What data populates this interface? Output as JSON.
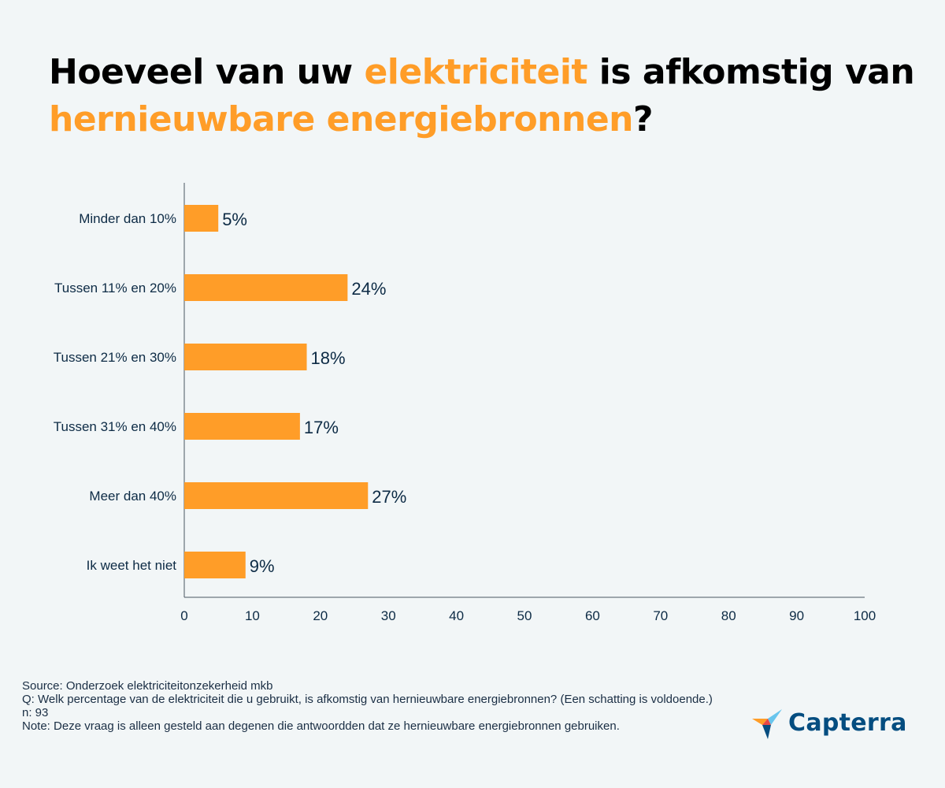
{
  "header": {
    "title_part1": "Hoeveel van uw ",
    "title_highlight1": "elektriciteit",
    "title_part2": " is afkomstig van ",
    "title_highlight2": "hernieuwbare energiebronnen",
    "title_part3": "?"
  },
  "colors": {
    "bar": "#ff9d28",
    "highlight": "#ff9d28",
    "text": "#0d2b45",
    "axis": "#4a5560"
  },
  "chart_data": {
    "type": "bar",
    "orientation": "horizontal",
    "title": "Hoeveel van uw elektriciteit is afkomstig van hernieuwbare energiebronnen?",
    "categories": [
      "Minder dan 10%",
      "Tussen 11% en 20%",
      "Tussen 21% en 30%",
      "Tussen 31% en 40%",
      "Meer dan 40%",
      "Ik weet het niet"
    ],
    "values": [
      5,
      24,
      18,
      17,
      27,
      9
    ],
    "value_labels": [
      "5%",
      "24%",
      "18%",
      "17%",
      "27%",
      "9%"
    ],
    "xlim": [
      0,
      100
    ],
    "xticks": [
      0,
      10,
      20,
      30,
      40,
      50,
      60,
      70,
      80,
      90,
      100
    ],
    "xlabel": "",
    "ylabel": "",
    "grid": false
  },
  "footer": {
    "source": "Source: Onderzoek elektriciteitonzekerheid mkb",
    "question": "Q: Welk percentage van de elektriciteit die u gebruikt, is afkomstig van hernieuwbare energiebronnen? (Een schatting is voldoende.)",
    "n": "n: 93",
    "note": "Note: Deze vraag is alleen gesteld aan degenen die antwoordden dat ze hernieuwbare energiebronnen gebruiken."
  },
  "logo": {
    "text": "Capterra",
    "icon": "capterra-arrow-icon"
  }
}
